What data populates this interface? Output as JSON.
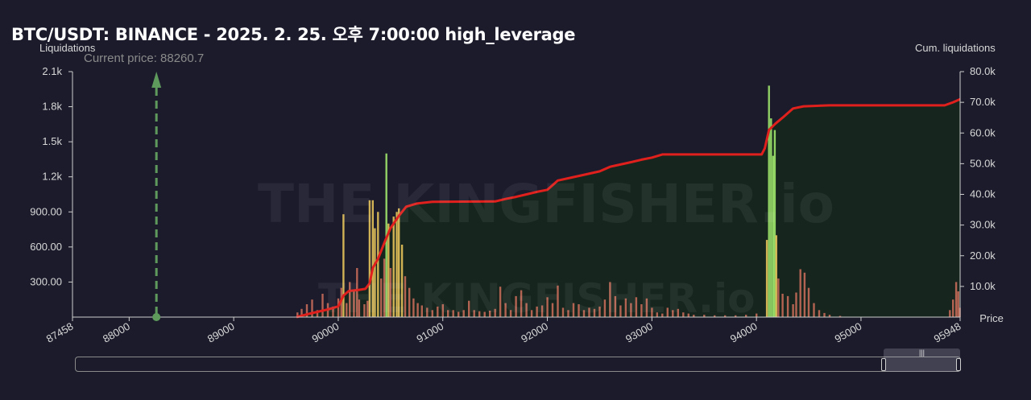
{
  "chart_data": {
    "type": "bar",
    "title": "BTC/USDT: BINANCE - 2025. 2. 25. 오후 7:00:00 high_leverage",
    "ylabel_left": "Liquidations",
    "ylabel_right": "Cum. liquidations",
    "xlabel": "Price",
    "current_price_label": "Current price: 88260.7",
    "current_price": 88260.7,
    "x_range": [
      87458,
      95948
    ],
    "x_ticks": [
      "87458",
      "88000",
      "89000",
      "90000",
      "91000",
      "92000",
      "93000",
      "94000",
      "95000",
      "95948"
    ],
    "y_left_ticks": [
      "300.00",
      "600.00",
      "900.00",
      "1.2k",
      "1.5k",
      "1.8k",
      "2.1k"
    ],
    "y_left_range": [
      0,
      2100
    ],
    "y_right_ticks": [
      "10.0k",
      "20.0k",
      "30.0k",
      "40.0k",
      "50.0k",
      "60.0k",
      "70.0k",
      "80.0k"
    ],
    "y_right_range": [
      0,
      80000
    ],
    "watermark": "THE KINGFISHER.io",
    "colors": {
      "background": "#1b1b2c",
      "cumulative_line": "#e0201c",
      "cumulative_fill": "#16271d",
      "bar_low": "#c46a58",
      "bar_mid": "#e5c35a",
      "bar_high": "#9ee56c",
      "current_price_line": "#5f9a5d"
    },
    "liquidation_bars": [
      [
        89610,
        40
      ],
      [
        89650,
        70
      ],
      [
        89700,
        110
      ],
      [
        89750,
        150
      ],
      [
        89800,
        60
      ],
      [
        89850,
        200
      ],
      [
        89900,
        120
      ],
      [
        89950,
        90
      ],
      [
        90000,
        160
      ],
      [
        90030,
        250
      ],
      [
        90050,
        880
      ],
      [
        90080,
        120
      ],
      [
        90110,
        300
      ],
      [
        90150,
        220
      ],
      [
        90180,
        420
      ],
      [
        90200,
        150
      ],
      [
        90250,
        110
      ],
      [
        90280,
        140
      ],
      [
        90300,
        1000
      ],
      [
        90330,
        1000
      ],
      [
        90350,
        760
      ],
      [
        90380,
        900
      ],
      [
        90410,
        330
      ],
      [
        90440,
        500
      ],
      [
        90460,
        1400
      ],
      [
        90480,
        800
      ],
      [
        90500,
        420
      ],
      [
        90530,
        860
      ],
      [
        90560,
        900
      ],
      [
        90580,
        930
      ],
      [
        90610,
        620
      ],
      [
        90640,
        350
      ],
      [
        90680,
        250
      ],
      [
        90720,
        160
      ],
      [
        90760,
        120
      ],
      [
        90800,
        100
      ],
      [
        90850,
        80
      ],
      [
        90900,
        60
      ],
      [
        90950,
        90
      ],
      [
        91000,
        110
      ],
      [
        91050,
        60
      ],
      [
        91100,
        60
      ],
      [
        91150,
        45
      ],
      [
        91200,
        60
      ],
      [
        91250,
        140
      ],
      [
        91300,
        60
      ],
      [
        91350,
        50
      ],
      [
        91400,
        45
      ],
      [
        91450,
        55
      ],
      [
        91500,
        70
      ],
      [
        91550,
        260
      ],
      [
        91600,
        120
      ],
      [
        91650,
        60
      ],
      [
        91700,
        180
      ],
      [
        91750,
        230
      ],
      [
        91800,
        120
      ],
      [
        91850,
        60
      ],
      [
        91900,
        90
      ],
      [
        91950,
        100
      ],
      [
        92000,
        170
      ],
      [
        92050,
        120
      ],
      [
        92100,
        270
      ],
      [
        92150,
        80
      ],
      [
        92200,
        60
      ],
      [
        92250,
        120
      ],
      [
        92300,
        110
      ],
      [
        92350,
        60
      ],
      [
        92400,
        80
      ],
      [
        92450,
        70
      ],
      [
        92500,
        90
      ],
      [
        92550,
        150
      ],
      [
        92600,
        300
      ],
      [
        92650,
        180
      ],
      [
        92700,
        100
      ],
      [
        92750,
        160
      ],
      [
        92800,
        120
      ],
      [
        92850,
        170
      ],
      [
        92900,
        110
      ],
      [
        92950,
        160
      ],
      [
        93000,
        80
      ],
      [
        93050,
        40
      ],
      [
        93100,
        30
      ],
      [
        93150,
        80
      ],
      [
        93200,
        60
      ],
      [
        93250,
        70
      ],
      [
        93300,
        40
      ],
      [
        93350,
        30
      ],
      [
        93400,
        20
      ],
      [
        93500,
        20
      ],
      [
        93600,
        15
      ],
      [
        93700,
        15
      ],
      [
        93800,
        15
      ],
      [
        93900,
        20
      ],
      [
        94000,
        30
      ],
      [
        94100,
        660
      ],
      [
        94120,
        1980
      ],
      [
        94140,
        1700
      ],
      [
        94160,
        1380
      ],
      [
        94175,
        1600
      ],
      [
        94190,
        700
      ],
      [
        94210,
        330
      ],
      [
        94250,
        200
      ],
      [
        94300,
        180
      ],
      [
        94350,
        110
      ],
      [
        94380,
        210
      ],
      [
        94420,
        410
      ],
      [
        94460,
        380
      ],
      [
        94500,
        250
      ],
      [
        94550,
        120
      ],
      [
        94600,
        60
      ],
      [
        94650,
        35
      ],
      [
        94700,
        20
      ],
      [
        94800,
        10
      ],
      [
        95850,
        60
      ],
      [
        95880,
        150
      ],
      [
        95910,
        300
      ],
      [
        95930,
        220
      ],
      [
        95945,
        80
      ]
    ],
    "cumulative_line": [
      [
        89600,
        0
      ],
      [
        89700,
        900
      ],
      [
        89800,
        1700
      ],
      [
        89900,
        2500
      ],
      [
        90000,
        3500
      ],
      [
        90050,
        7000
      ],
      [
        90100,
        8500
      ],
      [
        90200,
        8900
      ],
      [
        90260,
        9200
      ],
      [
        90300,
        11000
      ],
      [
        90330,
        16000
      ],
      [
        90380,
        19000
      ],
      [
        90450,
        25000
      ],
      [
        90500,
        29000
      ],
      [
        90580,
        33000
      ],
      [
        90650,
        36000
      ],
      [
        90750,
        37000
      ],
      [
        90900,
        37600
      ],
      [
        91500,
        37700
      ],
      [
        91600,
        38500
      ],
      [
        91700,
        39200
      ],
      [
        91800,
        40000
      ],
      [
        91900,
        40800
      ],
      [
        92000,
        41500
      ],
      [
        92050,
        43000
      ],
      [
        92100,
        44500
      ],
      [
        92300,
        46000
      ],
      [
        92500,
        47500
      ],
      [
        92600,
        49000
      ],
      [
        92800,
        50500
      ],
      [
        92900,
        51300
      ],
      [
        93000,
        52000
      ],
      [
        93100,
        53000
      ],
      [
        94050,
        53000
      ],
      [
        94080,
        55000
      ],
      [
        94120,
        61000
      ],
      [
        94180,
        63000
      ],
      [
        94250,
        65000
      ],
      [
        94350,
        68000
      ],
      [
        94450,
        68700
      ],
      [
        94700,
        69000
      ],
      [
        95800,
        69000
      ],
      [
        95880,
        70000
      ],
      [
        95948,
        71000
      ]
    ]
  }
}
